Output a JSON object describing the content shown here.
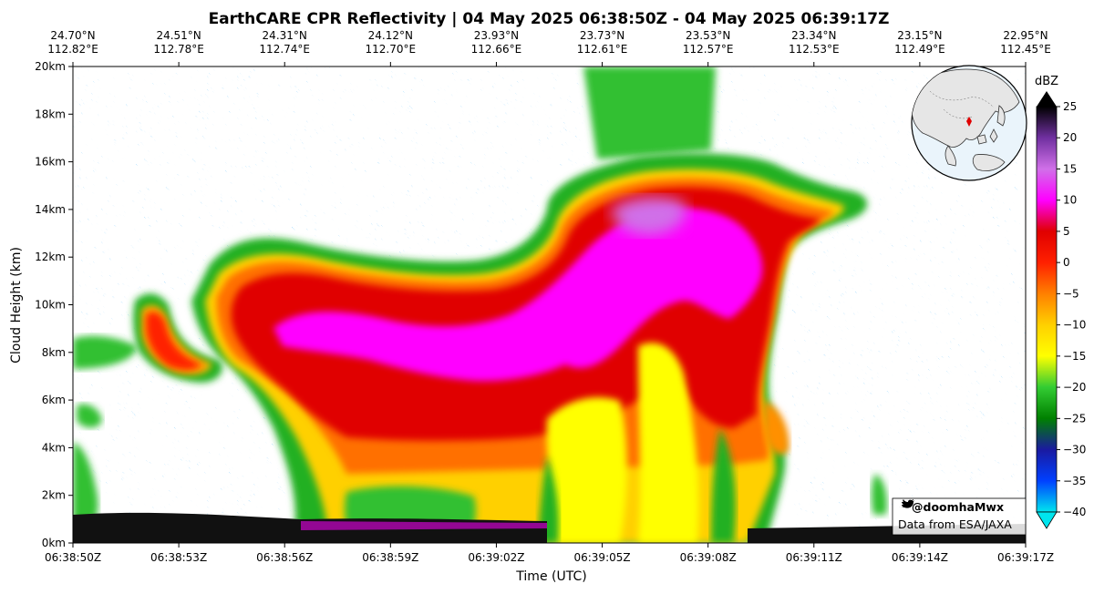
{
  "chart_data": {
    "type": "heatmap",
    "title": "EarthCARE CPR Reflectivity | 04 May 2025 06:38:50Z - 04 May 2025 06:39:17Z",
    "xlabel": "Time (UTC)",
    "ylabel": "Cloud Height (km)",
    "x_ticks": [
      "06:38:50Z",
      "06:38:53Z",
      "06:38:56Z",
      "06:38:59Z",
      "06:39:02Z",
      "06:39:05Z",
      "06:39:08Z",
      "06:39:11Z",
      "06:39:14Z",
      "06:39:17Z"
    ],
    "y_ticks": [
      {
        "value": 0,
        "label": "0km"
      },
      {
        "value": 2,
        "label": "2km"
      },
      {
        "value": 4,
        "label": "4km"
      },
      {
        "value": 6,
        "label": "6km"
      },
      {
        "value": 8,
        "label": "8km"
      },
      {
        "value": 10,
        "label": "10km"
      },
      {
        "value": 12,
        "label": "12km"
      },
      {
        "value": 14,
        "label": "14km"
      },
      {
        "value": 16,
        "label": "16km"
      },
      {
        "value": 18,
        "label": "18km"
      },
      {
        "value": 20,
        "label": "20km"
      }
    ],
    "ylim": [
      0,
      20
    ],
    "top_ticks": [
      {
        "lat": "24.70°N",
        "lon": "112.82°E"
      },
      {
        "lat": "24.51°N",
        "lon": "112.78°E"
      },
      {
        "lat": "24.31°N",
        "lon": "112.74°E"
      },
      {
        "lat": "24.12°N",
        "lon": "112.70°E"
      },
      {
        "lat": "23.93°N",
        "lon": "112.66°E"
      },
      {
        "lat": "23.73°N",
        "lon": "112.61°E"
      },
      {
        "lat": "23.53°N",
        "lon": "112.57°E"
      },
      {
        "lat": "23.34°N",
        "lon": "112.53°E"
      },
      {
        "lat": "23.15°N",
        "lon": "112.49°E"
      },
      {
        "lat": "22.95°N",
        "lon": "112.45°E"
      }
    ],
    "colorbar": {
      "label": "dBZ",
      "min": -40,
      "max": 25,
      "ticks": [
        25,
        20,
        15,
        10,
        5,
        0,
        -5,
        -10,
        -15,
        -20,
        -25,
        -30,
        -35,
        -40
      ],
      "tick_labels": [
        "25",
        "20",
        "15",
        "10",
        "5",
        "0",
        "−5",
        "−10",
        "−15",
        "−20",
        "−25",
        "−30",
        "−35",
        "−40"
      ],
      "stops": [
        "#00e5ee",
        "#0040ff",
        "#1a1aa0",
        "#008000",
        "#33cc33",
        "#ffff00",
        "#ffd000",
        "#ff8000",
        "#ff2000",
        "#e00000",
        "#ff00ff",
        "#d070e8",
        "#7030a0",
        "#000000"
      ]
    },
    "credit": {
      "handle": "@doomhaMwx",
      "source": "Data from ESA/JAXA"
    }
  }
}
